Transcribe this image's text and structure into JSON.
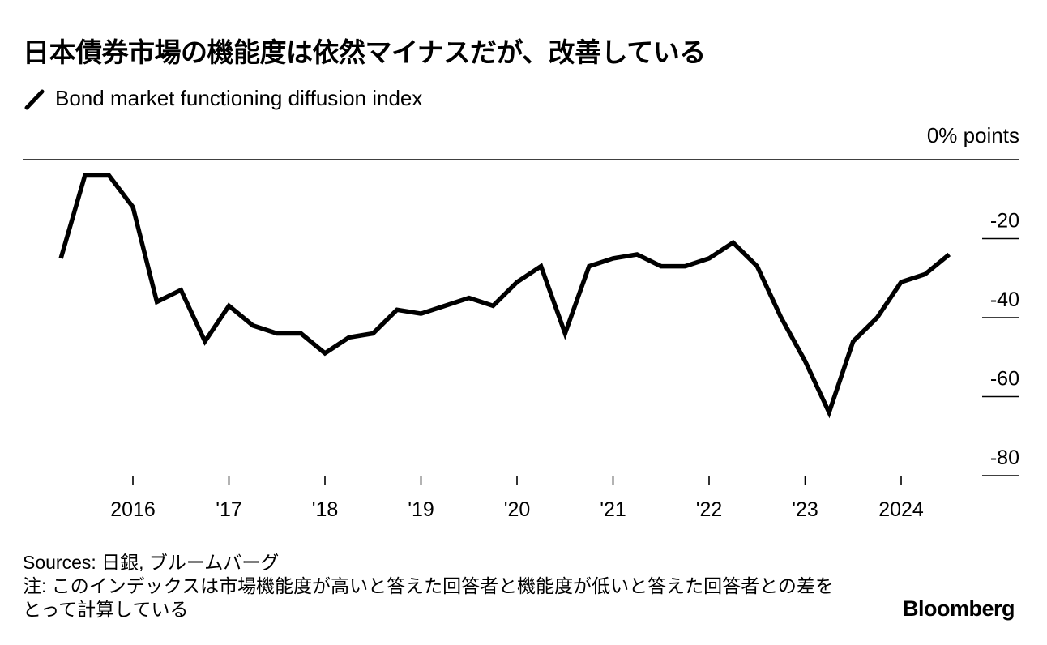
{
  "title": "日本債券市場の機能度は依然マイナスだが、改善している",
  "legend_label": "Bond market functioning diffusion index",
  "unit_label": "0% points",
  "sources": "Sources: 日銀, ブルームバーグ",
  "note": "注: このインデックスは市場機能度が高いと答えた回答者と機能度が低いと答えた回答者との差をとって計算している",
  "brand": "Bloomberg",
  "colors": {
    "line": "#000000",
    "axis": "#000000",
    "background": "#ffffff"
  },
  "chart_data": {
    "type": "line",
    "title": "日本債券市場の機能度は依然マイナスだが、改善している",
    "xlabel": "",
    "ylabel": "% points",
    "ylim": [
      -80,
      0
    ],
    "xlim": [
      2015.0,
      2025.0
    ],
    "y_ticks": [
      0,
      -20,
      -40,
      -60,
      -80
    ],
    "y_tick_labels": [
      "0",
      "-20",
      "-40",
      "-60",
      "-80"
    ],
    "x_ticks": [
      2016,
      2017,
      2018,
      2019,
      2020,
      2021,
      2022,
      2023,
      2024
    ],
    "x_tick_labels": [
      "2016",
      "'17",
      "'18",
      "'19",
      "'20",
      "'21",
      "'22",
      "'23",
      "2024"
    ],
    "grid": true,
    "legend_position": "top-left",
    "series": [
      {
        "name": "Bond market functioning diffusion index",
        "x": [
          2015.25,
          2015.5,
          2015.75,
          2016.0,
          2016.25,
          2016.5,
          2016.75,
          2017.0,
          2017.25,
          2017.5,
          2017.75,
          2018.0,
          2018.25,
          2018.5,
          2018.75,
          2019.0,
          2019.25,
          2019.5,
          2019.75,
          2020.0,
          2020.25,
          2020.5,
          2020.75,
          2021.0,
          2021.25,
          2021.5,
          2021.75,
          2022.0,
          2022.25,
          2022.5,
          2022.75,
          2023.0,
          2023.25,
          2023.5,
          2023.75,
          2024.0,
          2024.25,
          2024.5
        ],
        "values": [
          -25,
          -4,
          -4,
          -12,
          -36,
          -33,
          -46,
          -37,
          -42,
          -44,
          -44,
          -49,
          -45,
          -44,
          -38,
          -39,
          -37,
          -35,
          -37,
          -31,
          -27,
          -44,
          -27,
          -25,
          -24,
          -27,
          -27,
          -25,
          -21,
          -27,
          -40,
          -51,
          -64,
          -46,
          -40,
          -31,
          -29,
          -24
        ]
      }
    ]
  }
}
